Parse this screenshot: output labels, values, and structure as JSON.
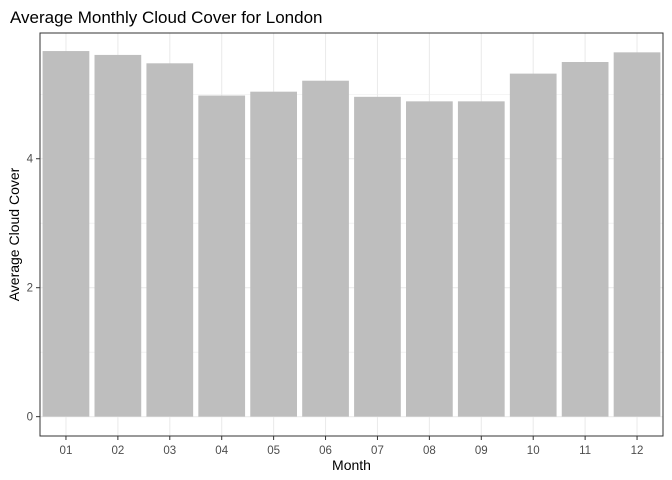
{
  "chart_data": {
    "type": "bar",
    "title": "Average Monthly Cloud Cover for London",
    "xlabel": "Month",
    "ylabel": "Average Cloud Cover",
    "categories": [
      "01",
      "02",
      "03",
      "04",
      "05",
      "06",
      "07",
      "08",
      "09",
      "10",
      "11",
      "12"
    ],
    "values": [
      5.67,
      5.61,
      5.48,
      4.98,
      5.04,
      5.21,
      4.96,
      4.89,
      4.89,
      5.32,
      5.5,
      5.65
    ],
    "ylim": [
      -0.3,
      5.95
    ],
    "yticks": [
      0,
      2,
      4
    ],
    "ytick_labels": [
      "0",
      "2",
      "4"
    ],
    "grid": true,
    "bar_color": "#bebebe",
    "grid_color": "#ebebeb",
    "panel_border_color": "#333333"
  }
}
